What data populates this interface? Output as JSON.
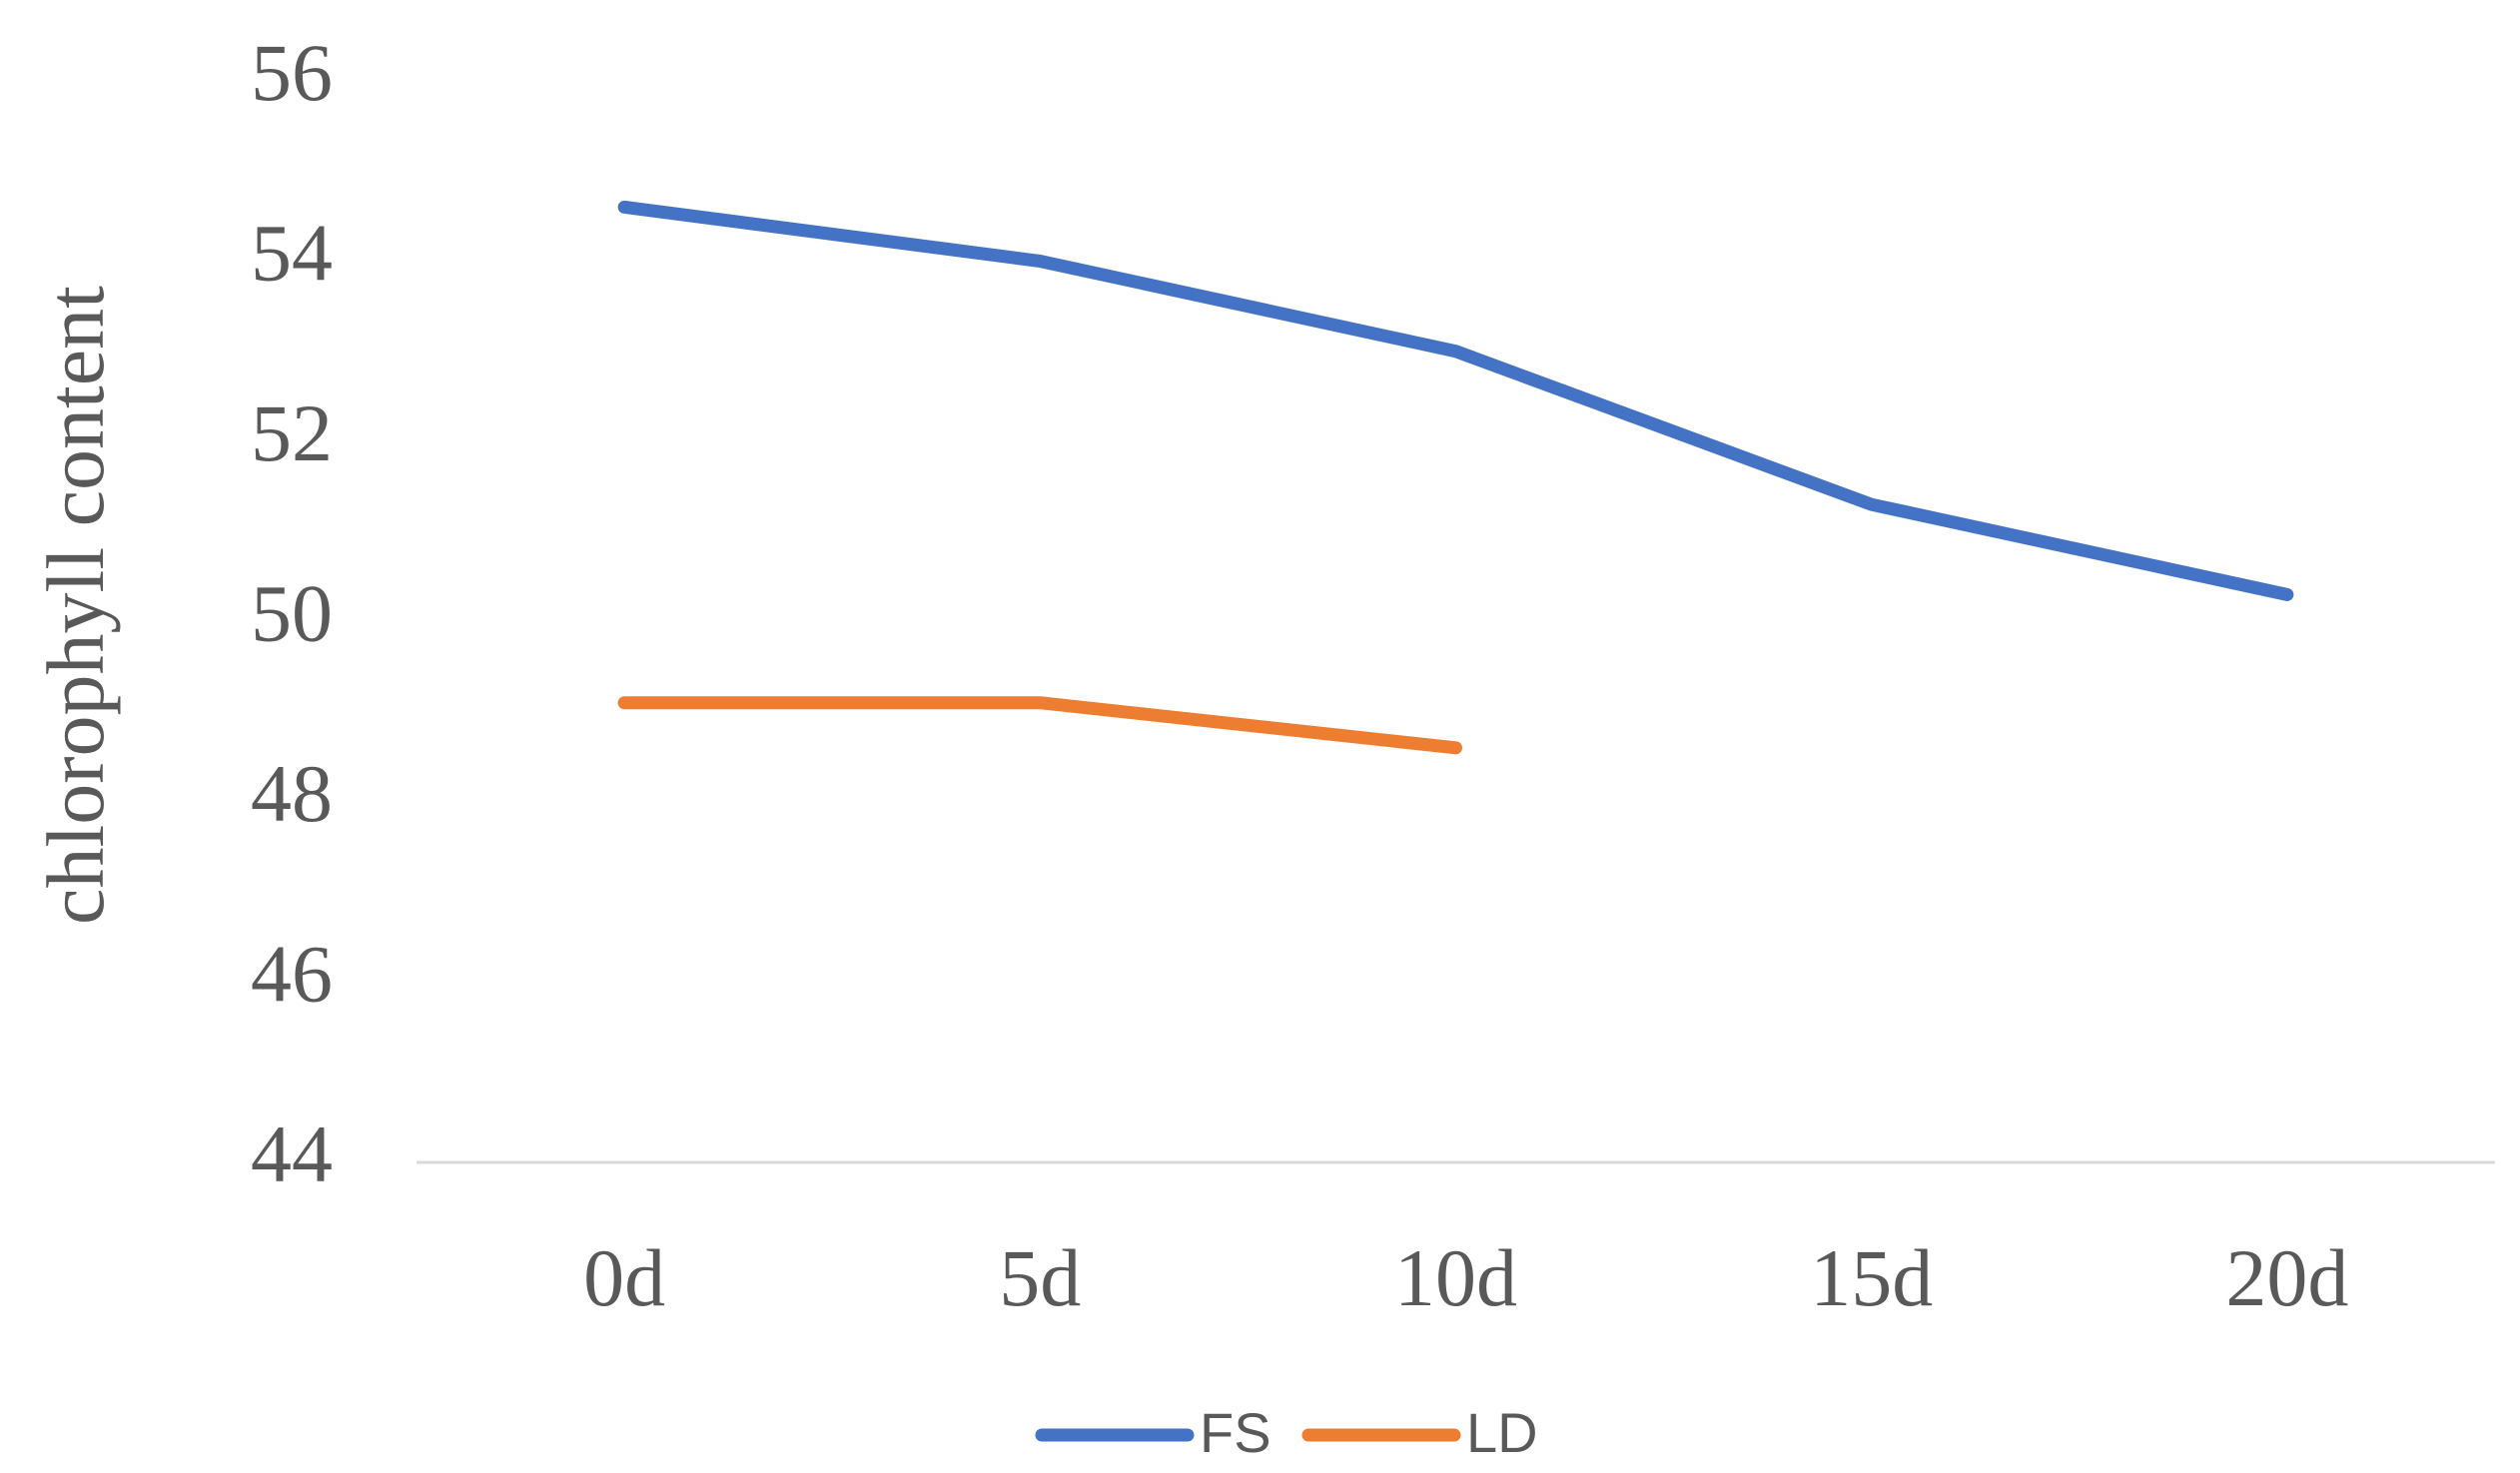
{
  "chart_data": {
    "type": "line",
    "y_label": "chlorophyll content",
    "categories": [
      "0d",
      "5d",
      "10d",
      "15d",
      "20d"
    ],
    "series": [
      {
        "name": "FS",
        "color": "#4472c4",
        "values": [
          54.6,
          54.0,
          53.0,
          51.3,
          50.3
        ]
      },
      {
        "name": "LD",
        "color": "#ed7d31",
        "values": [
          49.1,
          49.1,
          48.6,
          null,
          null
        ]
      }
    ],
    "ylim": [
      44,
      56
    ],
    "yticks": [
      44,
      46,
      48,
      50,
      52,
      54,
      56
    ],
    "grid": false,
    "legend": "bottom"
  }
}
